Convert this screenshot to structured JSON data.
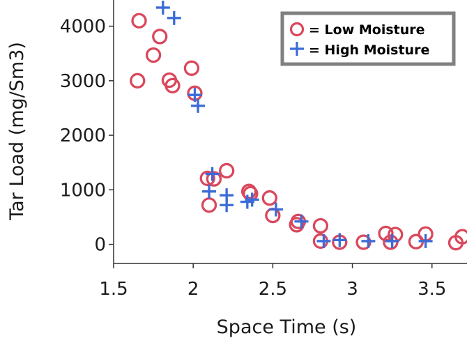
{
  "chart_data": {
    "type": "scatter",
    "title": "",
    "xlabel": "Space Time (s)",
    "ylabel": "Tar Load (mg/Sm3)",
    "xlim": [
      1.5,
      3.72
    ],
    "ylim": [
      -350,
      4480
    ],
    "xticks": [
      "1.5",
      "2",
      "2.5",
      "3",
      "3.5"
    ],
    "yticks": [
      "0",
      "1000",
      "2000",
      "3000",
      "4000"
    ],
    "grid": false,
    "legend_position": "top-right",
    "series": [
      {
        "name": "= Low Moisture",
        "marker": "circle",
        "color": "#d9485c",
        "points": [
          [
            1.65,
            3000
          ],
          [
            1.66,
            4100
          ],
          [
            1.75,
            3470
          ],
          [
            1.79,
            3810
          ],
          [
            1.85,
            3010
          ],
          [
            1.87,
            2910
          ],
          [
            1.99,
            3230
          ],
          [
            2.01,
            2770
          ],
          [
            2.09,
            1210
          ],
          [
            2.1,
            720
          ],
          [
            2.13,
            1200
          ],
          [
            2.21,
            1350
          ],
          [
            2.35,
            970
          ],
          [
            2.36,
            930
          ],
          [
            2.48,
            850
          ],
          [
            2.5,
            530
          ],
          [
            2.65,
            360
          ],
          [
            2.66,
            420
          ],
          [
            2.8,
            60
          ],
          [
            2.8,
            340
          ],
          [
            2.92,
            40
          ],
          [
            3.07,
            40
          ],
          [
            3.21,
            200
          ],
          [
            3.24,
            40
          ],
          [
            3.27,
            180
          ],
          [
            3.4,
            50
          ],
          [
            3.46,
            190
          ],
          [
            3.65,
            30
          ],
          [
            3.69,
            140
          ]
        ]
      },
      {
        "name": "= High Moisture",
        "marker": "plus",
        "color": "#3a6bd8",
        "points": [
          [
            1.81,
            4340
          ],
          [
            1.88,
            4150
          ],
          [
            2.01,
            2740
          ],
          [
            2.03,
            2540
          ],
          [
            2.1,
            970
          ],
          [
            2.12,
            1290
          ],
          [
            2.21,
            900
          ],
          [
            2.21,
            720
          ],
          [
            2.34,
            780
          ],
          [
            2.37,
            820
          ],
          [
            2.52,
            640
          ],
          [
            2.68,
            420
          ],
          [
            2.82,
            60
          ],
          [
            2.92,
            80
          ],
          [
            3.1,
            60
          ],
          [
            3.25,
            60
          ],
          [
            3.46,
            60
          ]
        ]
      }
    ]
  }
}
